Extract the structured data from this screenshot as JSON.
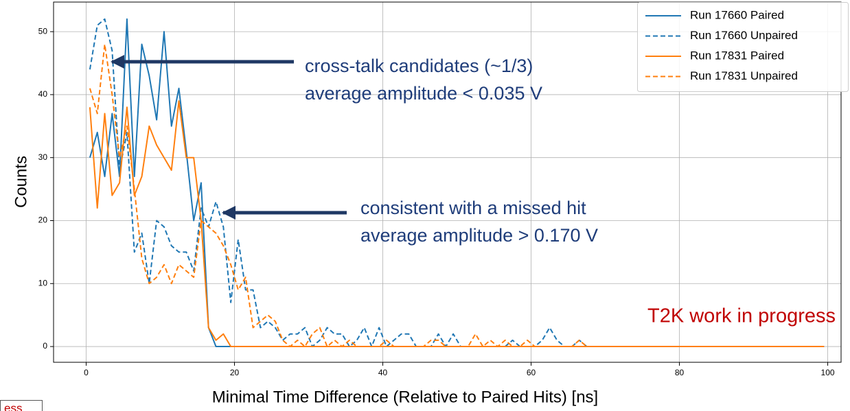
{
  "chart_data": {
    "type": "line",
    "xlabel": "Minimal Time Difference (Relative to Paired Hits) [ns]",
    "ylabel": "Counts",
    "xlim": [
      -4.4,
      101.8
    ],
    "ylim": [
      -2.5,
      54.7
    ],
    "xticks": [
      0,
      20,
      40,
      60,
      80,
      100
    ],
    "yticks": [
      0,
      10,
      20,
      30,
      40,
      50
    ],
    "grid": true,
    "legend": "upper right",
    "x": [
      0.5,
      1.5,
      2.5,
      3.5,
      4.5,
      5.5,
      6.5,
      7.5,
      8.5,
      9.5,
      10.5,
      11.5,
      12.5,
      13.5,
      14.5,
      15.5,
      16.5,
      17.5,
      18.5,
      19.5,
      20.5,
      21.5,
      22.5,
      23.5,
      24.5,
      25.5,
      26.5,
      27.5,
      28.5,
      29.5,
      30.5,
      31.5,
      32.5,
      33.5,
      34.5,
      35.5,
      36.5,
      37.5,
      38.5,
      39.5,
      40.5,
      41.5,
      42.5,
      43.5,
      44.5,
      45.5,
      46.5,
      47.5,
      48.5,
      49.5,
      50.5,
      51.5,
      52.5,
      53.5,
      54.5,
      55.5,
      56.5,
      57.5,
      58.5,
      59.5,
      60.5,
      61.5,
      62.5,
      63.5,
      64.5,
      65.5,
      66.5,
      67.5,
      68.5,
      69.5,
      70.5,
      71.5,
      72.5,
      73.5,
      74.5,
      75.5,
      76.5,
      77.5,
      78.5,
      79.5,
      80.5,
      81.5,
      82.5,
      83.5,
      84.5,
      85.5,
      86.5,
      87.5,
      88.5,
      89.5,
      90.5,
      91.5,
      92.5,
      93.5,
      94.5,
      95.5,
      96.5,
      97.5,
      98.5,
      99.5
    ],
    "series": [
      {
        "name": "Run 17660 Paired",
        "color": "#1f77b4",
        "linestyle": "solid",
        "values": [
          30,
          34,
          27,
          37,
          27,
          52,
          27,
          48,
          43,
          36,
          50,
          35,
          41,
          31,
          20,
          26,
          3,
          0,
          0,
          0,
          0,
          0,
          0,
          0,
          0,
          0,
          0,
          0,
          0,
          0,
          0,
          0,
          0,
          0,
          0,
          0,
          0,
          0,
          0,
          0,
          0,
          0,
          0,
          0,
          0,
          0,
          0,
          0,
          0,
          0,
          0,
          0,
          0,
          0,
          0,
          0,
          0,
          0,
          0,
          0,
          0,
          0,
          0,
          0,
          0,
          0,
          0,
          0,
          0,
          0,
          0,
          0,
          0,
          0,
          0,
          0,
          0,
          0,
          0,
          0,
          0,
          0,
          0,
          0,
          0,
          0,
          0,
          0,
          0,
          0,
          0,
          0,
          0,
          0,
          0,
          0,
          0,
          0,
          0,
          0
        ]
      },
      {
        "name": "Run 17660 Unpaired",
        "color": "#1f77b4",
        "linestyle": "dashed",
        "values": [
          44,
          51,
          52,
          47,
          28,
          34,
          15,
          18,
          10,
          20,
          19,
          16,
          15,
          15,
          12,
          22,
          19,
          23,
          19,
          7,
          17,
          9,
          9,
          3,
          4,
          3,
          1,
          2,
          2,
          3,
          0,
          1,
          3,
          2,
          2,
          0,
          1,
          3,
          0,
          3,
          0,
          1,
          2,
          2,
          0,
          0,
          0,
          2,
          0,
          2,
          0,
          0,
          0,
          0,
          0,
          0,
          0,
          1,
          0,
          0,
          0,
          1,
          3,
          1,
          0,
          0,
          1,
          0,
          0,
          0,
          0,
          0,
          0,
          0,
          0,
          0,
          0,
          0,
          0,
          0,
          0,
          0,
          0,
          0,
          0,
          0,
          0,
          0,
          0,
          0,
          0,
          0,
          0,
          0,
          0,
          0,
          0,
          0,
          0,
          0
        ]
      },
      {
        "name": "Run 17831 Paired",
        "color": "#ff7f0e",
        "linestyle": "solid",
        "values": [
          38,
          22,
          37,
          24,
          26,
          38,
          24,
          27,
          35,
          32,
          30,
          28,
          39,
          30,
          30,
          20,
          3,
          1,
          2,
          0,
          0,
          0,
          0,
          0,
          0,
          0,
          0,
          0,
          0,
          0,
          0,
          0,
          0,
          0,
          0,
          0,
          0,
          0,
          0,
          0,
          0,
          0,
          0,
          0,
          0,
          0,
          0,
          0,
          0,
          0,
          0,
          0,
          0,
          0,
          0,
          0,
          0,
          0,
          0,
          0,
          0,
          0,
          0,
          0,
          0,
          0,
          0,
          0,
          0,
          0,
          0,
          0,
          0,
          0,
          0,
          0,
          0,
          0,
          0,
          0,
          0,
          0,
          0,
          0,
          0,
          0,
          0,
          0,
          0,
          0,
          0,
          0,
          0,
          0,
          0,
          0,
          0,
          0,
          0,
          0
        ]
      },
      {
        "name": "Run 17831 Unpaired",
        "color": "#ff7f0e",
        "linestyle": "dashed",
        "values": [
          41,
          37,
          48,
          40,
          30,
          35,
          25,
          14,
          10,
          11,
          13,
          10,
          13,
          12,
          11,
          20,
          19,
          18,
          16,
          13,
          9,
          11,
          3,
          4,
          5,
          4,
          1,
          0,
          1,
          0,
          2,
          3,
          0,
          1,
          0,
          1,
          0,
          0,
          0,
          0,
          1,
          0,
          0,
          0,
          0,
          0,
          1,
          1,
          0,
          0,
          0,
          0,
          2,
          0,
          1,
          0,
          1,
          0,
          0,
          1,
          0,
          0,
          0,
          0,
          0,
          0,
          1,
          0,
          0,
          0,
          0,
          0,
          0,
          0,
          0,
          0,
          0,
          0,
          0,
          0,
          0,
          0,
          0,
          0,
          0,
          0,
          0,
          0,
          0,
          0,
          0,
          0,
          0,
          0,
          0,
          0,
          0,
          0,
          0,
          0
        ]
      }
    ],
    "annotations": [
      {
        "lines": [
          "cross-talk candidates (~1/3)",
          "average amplitude < 0.035 V"
        ]
      },
      {
        "lines": [
          "consistent with a missed hit",
          "average amplitude > 0.170 V"
        ]
      }
    ],
    "watermark": "T2K work in progress",
    "corner_label": "ess"
  }
}
